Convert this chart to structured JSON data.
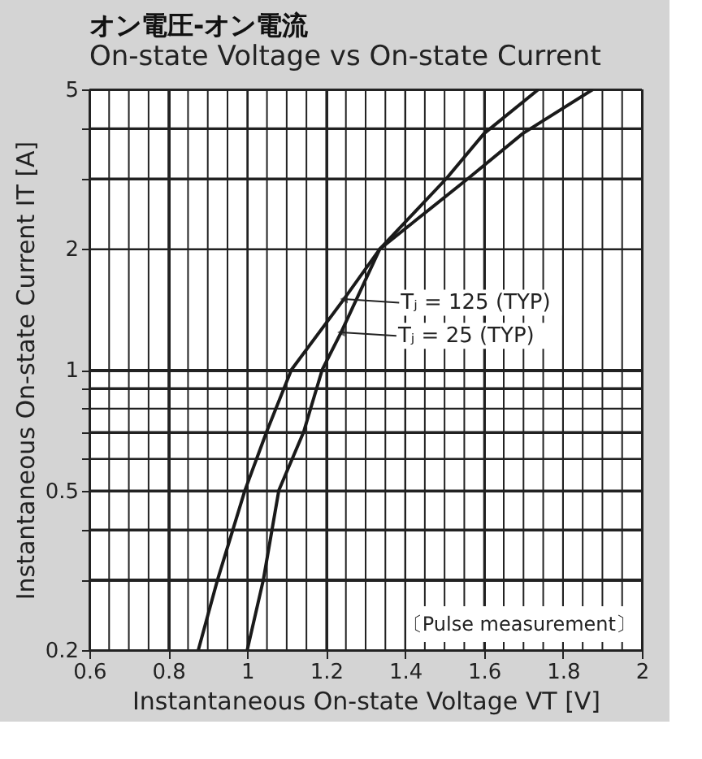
{
  "chart_data": {
    "type": "line",
    "title": "オン電圧-オン電流",
    "subtitle": "On-state Voltage vs On-state Current",
    "xlabel": "Instantaneous On-state Voltage  VT [V]",
    "ylabel": "Instantaneous On-state Current  IT [A]",
    "log": "y",
    "grid": true,
    "marker": "none",
    "line_style": "solid",
    "xlim": [
      0.6,
      2.0
    ],
    "ylim": [
      0.2,
      5
    ],
    "xticks": [
      0.6,
      {
        "value": 0.65,
        "label": null
      },
      {
        "value": 0.7,
        "label": null
      },
      {
        "value": 0.75,
        "label": null
      },
      0.8,
      {
        "value": 0.85,
        "label": null
      },
      {
        "value": 0.9,
        "label": null
      },
      {
        "value": 0.95,
        "label": null
      },
      1,
      {
        "value": 1.05,
        "label": null
      },
      {
        "value": 1.1,
        "label": null
      },
      {
        "value": 1.15,
        "label": null
      },
      1.2,
      {
        "value": 1.25,
        "label": null
      },
      {
        "value": 1.3,
        "label": null
      },
      {
        "value": 1.35,
        "label": null
      },
      1.4,
      {
        "value": 1.45,
        "label": null
      },
      {
        "value": 1.5,
        "label": null
      },
      {
        "value": 1.55,
        "label": null
      },
      1.6,
      {
        "value": 1.65,
        "label": null
      },
      {
        "value": 1.7,
        "label": null
      },
      {
        "value": 1.75,
        "label": null
      },
      1.8,
      {
        "value": 1.85,
        "label": null
      },
      {
        "value": 1.9,
        "label": null
      },
      {
        "value": 1.95,
        "label": null
      },
      2
    ],
    "yticks": [
      0.2,
      {
        "value": 0.3,
        "label": null
      },
      {
        "value": 0.4,
        "label": null
      },
      0.5,
      {
        "value": 0.6,
        "label": null
      },
      {
        "value": 0.7,
        "label": null
      },
      {
        "value": 0.8,
        "label": null
      },
      {
        "value": 0.9,
        "label": null
      },
      1,
      2,
      {
        "value": 3,
        "label": null
      },
      {
        "value": 4,
        "label": null
      },
      5
    ],
    "series": [
      {
        "color": "#1a1a1a",
        "x": [
          0.876,
          0.925,
          0.994,
          1.049,
          1.112,
          1.245,
          1.336,
          1.56,
          1.698,
          1.876
        ],
        "values": [
          0.2,
          0.3,
          0.5,
          0.7,
          1,
          1.5,
          2,
          3,
          3.88,
          5
        ]
      },
      {
        "color": "#1a1a1a",
        "x": [
          1.0,
          1.041,
          1.08,
          1.143,
          1.19,
          1.238,
          1.336,
          1.505,
          1.6,
          1.738
        ],
        "values": [
          0.2,
          0.3,
          0.5,
          0.7,
          1,
          1.24,
          2,
          3,
          3.88,
          5
        ]
      }
    ],
    "annotations": [
      {
        "text": "Tⱼ = 125 (TYP)",
        "x": 1.245,
        "y": 1.5
      },
      {
        "text": "Tⱼ =   25 (TYP)",
        "x": 1.238,
        "y": 1.24
      },
      "〔Pulse measurement〕"
    ]
  }
}
